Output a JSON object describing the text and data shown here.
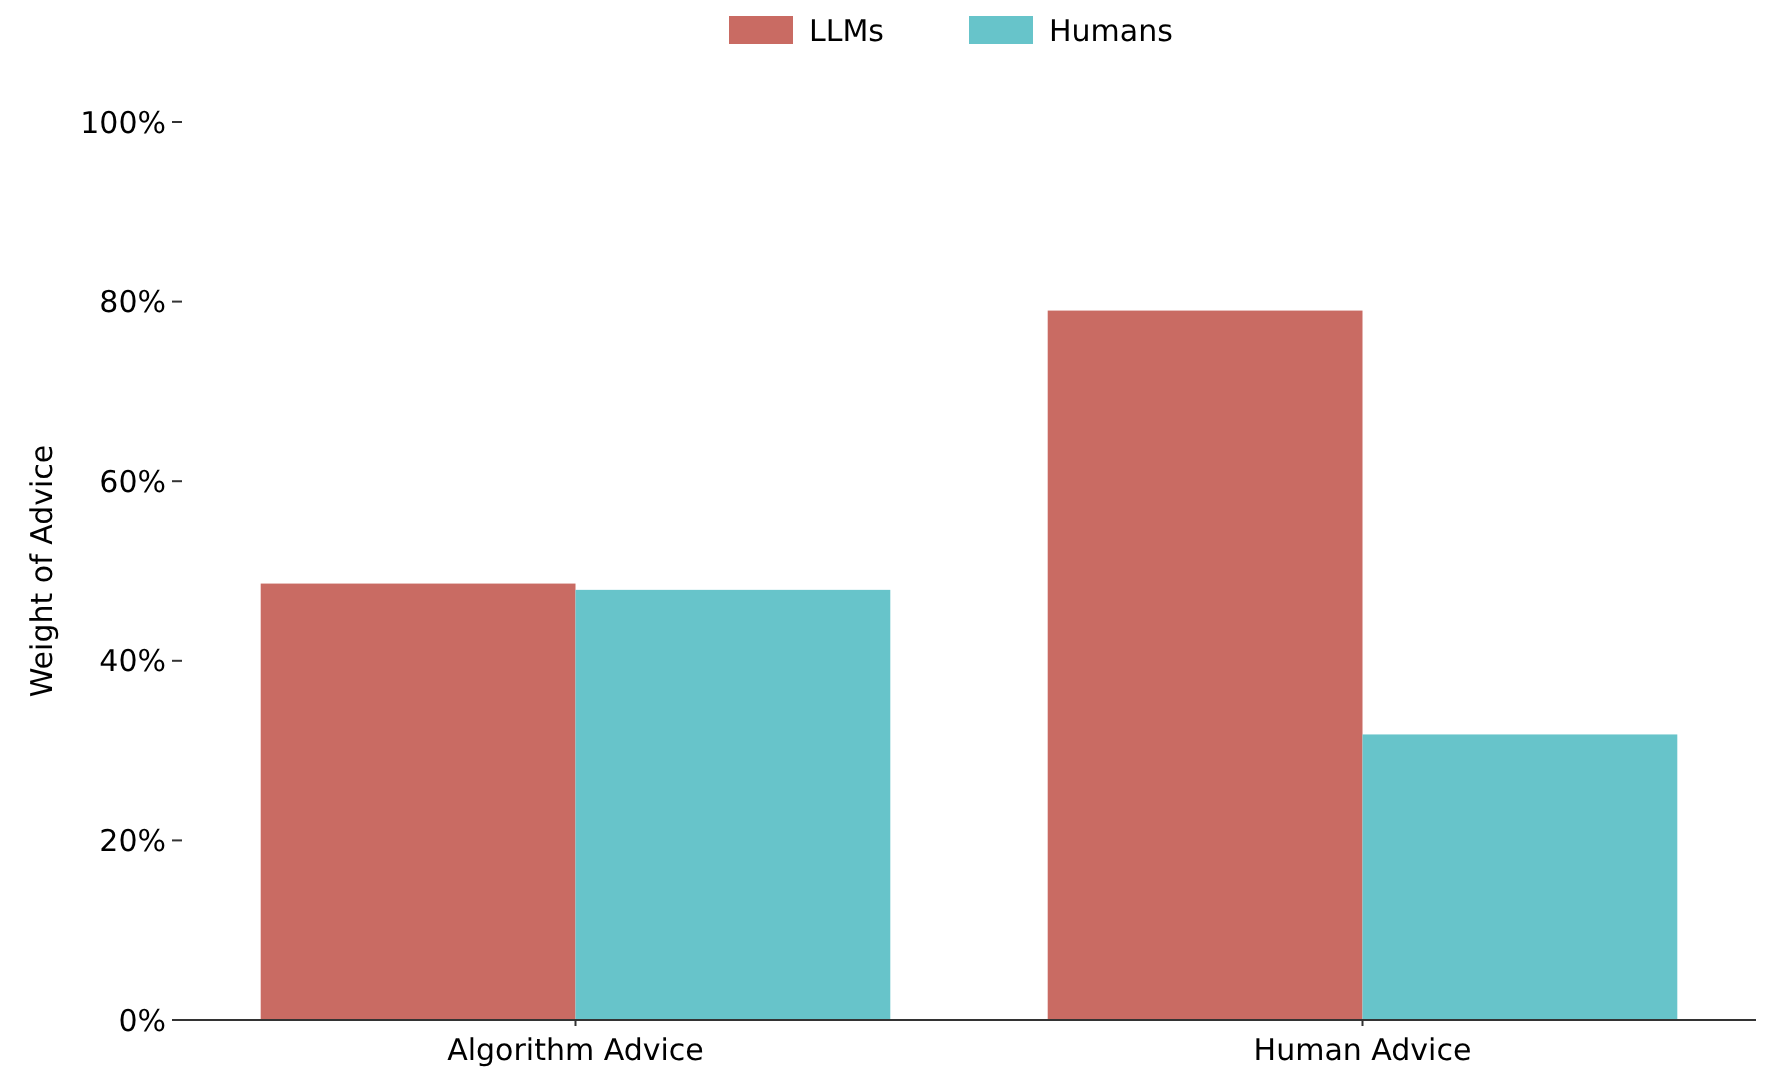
{
  "chart_data": {
    "type": "bar",
    "ylabel": "Weight of Advice",
    "categories": [
      "Algorithm Advice",
      "Human Advice"
    ],
    "series": [
      {
        "name": "LLMs",
        "color": "#c96b63",
        "values": [
          48.6,
          79
        ]
      },
      {
        "name": "Humans",
        "color": "#67c4ca",
        "values": [
          47.9,
          31.8
        ]
      }
    ],
    "ylim": [
      0,
      100
    ],
    "yticks": [
      {
        "value": 0,
        "label": "0%"
      },
      {
        "value": 20,
        "label": "20%"
      },
      {
        "value": 40,
        "label": "40%"
      },
      {
        "value": 60,
        "label": "60%"
      },
      {
        "value": 80,
        "label": "80%"
      },
      {
        "value": 100,
        "label": "100%"
      }
    ],
    "grid": false,
    "legend": "top"
  }
}
